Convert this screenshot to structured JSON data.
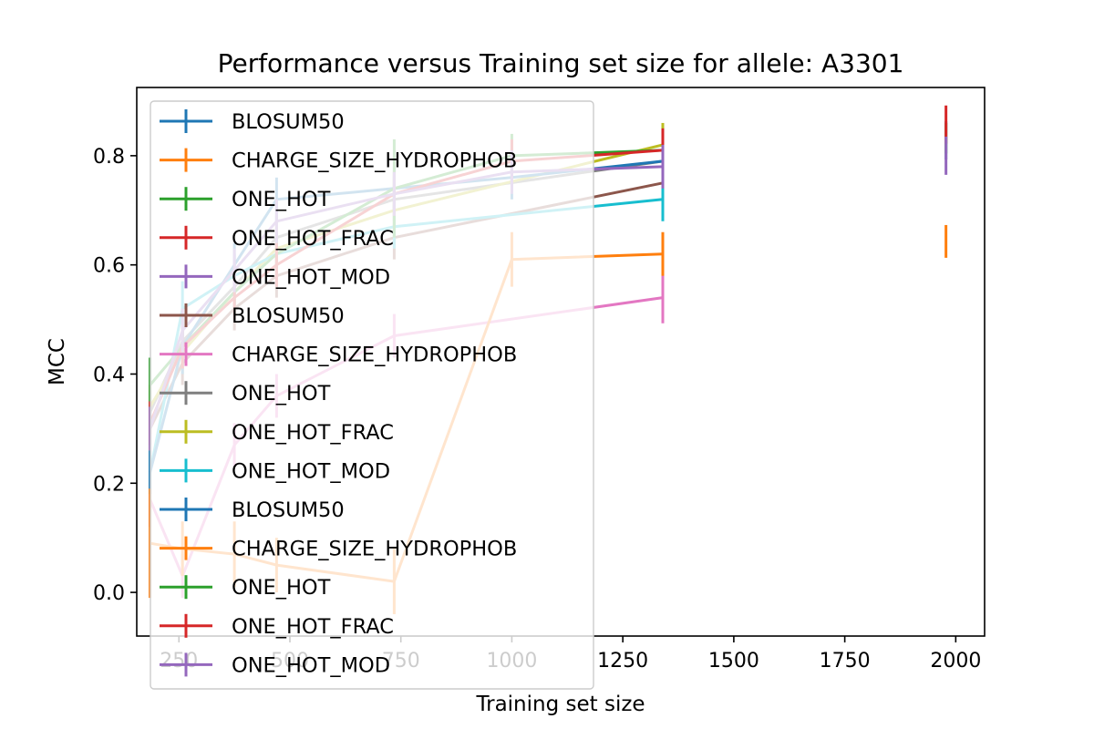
{
  "chart_data": {
    "type": "line",
    "title": "Performance versus Training set size for allele: A3301",
    "xlabel": "Training set size",
    "ylabel": "MCC",
    "xlim": [
      155,
      2065
    ],
    "ylim": [
      -0.08,
      0.925
    ],
    "xticks": [
      250,
      500,
      750,
      1000,
      1250,
      1500,
      1750,
      2000
    ],
    "yticks": [
      0.0,
      0.2,
      0.4,
      0.6,
      0.8
    ],
    "ytick_labels": [
      "0.0",
      "0.2",
      "0.4",
      "0.6",
      "0.8"
    ],
    "grid": false,
    "legend_position": "upper-left",
    "series": [
      {
        "name": "BLOSUM50",
        "color": "#1f77b4",
        "x": [
          1978
        ],
        "y": [
          0.828
        ],
        "err": [
          0.035
        ]
      },
      {
        "name": "CHARGE_SIZE_HYDROPHOB",
        "color": "#ff7f0e",
        "x": [
          1978
        ],
        "y": [
          0.643
        ],
        "err": [
          0.03
        ]
      },
      {
        "name": "ONE_HOT",
        "color": "#2ca02c",
        "x": [
          1978
        ],
        "y": [
          0.832
        ],
        "err": [
          0.028
        ]
      },
      {
        "name": "ONE_HOT_FRAC",
        "color": "#d62728",
        "x": [
          1978
        ],
        "y": [
          0.857
        ],
        "err": [
          0.035
        ]
      },
      {
        "name": "ONE_HOT_MOD",
        "color": "#9467bd",
        "x": [
          1978
        ],
        "y": [
          0.8
        ],
        "err": [
          0.035
        ]
      },
      {
        "name": "BLOSUM50",
        "color": "#8c564b",
        "x": [
          185,
          258,
          375,
          470,
          735,
          1340
        ],
        "y": [
          0.3,
          0.42,
          0.52,
          0.58,
          0.65,
          0.75
        ],
        "err": [
          0.04,
          0.04,
          0.04,
          0.04,
          0.04,
          0.04
        ]
      },
      {
        "name": "CHARGE_SIZE_HYDROPHOB",
        "color": "#e377c2",
        "x": [
          185,
          258,
          375,
          470,
          735,
          1340
        ],
        "y": [
          0.17,
          0.03,
          0.27,
          0.36,
          0.47,
          0.54
        ],
        "err": [
          0.05,
          0.04,
          0.04,
          0.04,
          0.04,
          0.047
        ]
      },
      {
        "name": "ONE_HOT",
        "color": "#7f7f7f",
        "x": [
          185,
          258,
          375,
          470,
          735,
          1340
        ],
        "y": [
          0.33,
          0.46,
          0.56,
          0.65,
          0.72,
          0.79
        ],
        "err": [
          0.04,
          0.04,
          0.04,
          0.04,
          0.04,
          0.04
        ]
      },
      {
        "name": "ONE_HOT_FRAC",
        "color": "#bcbd22",
        "x": [
          185,
          258,
          375,
          470,
          735,
          1340
        ],
        "y": [
          0.34,
          0.44,
          0.55,
          0.63,
          0.7,
          0.82
        ],
        "err": [
          0.04,
          0.04,
          0.04,
          0.04,
          0.04,
          0.04
        ]
      },
      {
        "name": "ONE_HOT_MOD",
        "color": "#17becf",
        "x": [
          185,
          258,
          375,
          470,
          735,
          1340
        ],
        "y": [
          0.22,
          0.52,
          0.58,
          0.62,
          0.67,
          0.72
        ],
        "err": [
          0.04,
          0.05,
          0.04,
          0.04,
          0.04,
          0.04
        ]
      },
      {
        "name": "BLOSUM50",
        "color": "#1f77b4",
        "x": [
          185,
          258,
          375,
          470,
          735,
          1000,
          1340
        ],
        "y": [
          0.22,
          0.45,
          0.6,
          0.72,
          0.74,
          0.76,
          0.79
        ],
        "err": [
          0.04,
          0.05,
          0.04,
          0.04,
          0.04,
          0.04,
          0.04
        ]
      },
      {
        "name": "CHARGE_SIZE_HYDROPHOB",
        "color": "#ff7f0e",
        "x": [
          185,
          258,
          375,
          470,
          735,
          1000,
          1340
        ],
        "y": [
          0.09,
          0.08,
          0.07,
          0.05,
          0.02,
          0.61,
          0.62
        ],
        "err": [
          0.1,
          0.05,
          0.06,
          0.05,
          0.06,
          0.05,
          0.04
        ]
      },
      {
        "name": "ONE_HOT",
        "color": "#2ca02c",
        "x": [
          185,
          258,
          375,
          470,
          735,
          1000,
          1340
        ],
        "y": [
          0.38,
          0.45,
          0.55,
          0.62,
          0.74,
          0.8,
          0.81
        ],
        "err": [
          0.05,
          0.04,
          0.04,
          0.04,
          0.09,
          0.04,
          0.04
        ]
      },
      {
        "name": "ONE_HOT_FRAC",
        "color": "#d62728",
        "x": [
          185,
          258,
          375,
          470,
          735,
          1000,
          1340
        ],
        "y": [
          0.31,
          0.45,
          0.54,
          0.6,
          0.73,
          0.79,
          0.81
        ],
        "err": [
          0.04,
          0.04,
          0.04,
          0.04,
          0.04,
          0.04,
          0.04
        ]
      },
      {
        "name": "ONE_HOT_MOD",
        "color": "#9467bd",
        "x": [
          185,
          258,
          375,
          470,
          735,
          1000,
          1340
        ],
        "y": [
          0.3,
          0.48,
          0.59,
          0.68,
          0.73,
          0.77,
          0.78
        ],
        "err": [
          0.04,
          0.04,
          0.04,
          0.04,
          0.04,
          0.04,
          0.04
        ]
      }
    ]
  }
}
